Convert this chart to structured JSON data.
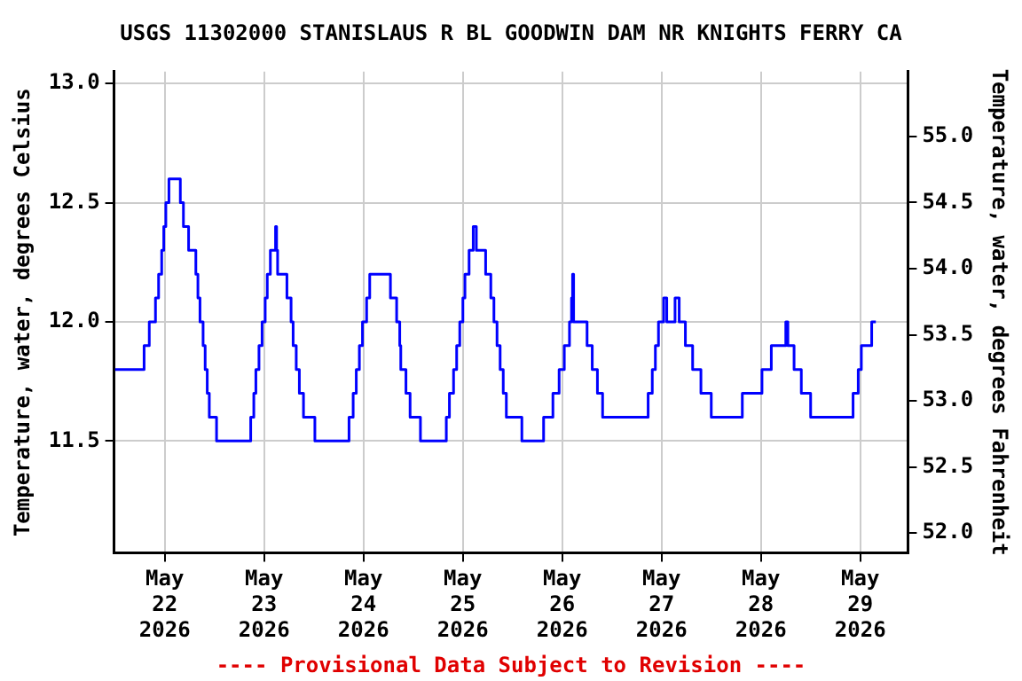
{
  "chart_data": {
    "type": "step",
    "title": "USGS 11302000 STANISLAUS R BL GOODWIN DAM NR KNIGHTS FERRY CA",
    "ylabel": "Temperature, water, degrees Celsius",
    "y2label": "Temperature, water, degrees Fahrenheit",
    "annotations": [
      "---- Provisional Data Subject to Revision ----"
    ],
    "xlim": [
      "2026-05-21T11:45",
      "2026-05-29T11:30"
    ],
    "xticks": [
      {
        "value": "2026-05-22",
        "label": "May\n22\n2026"
      },
      {
        "value": "2026-05-23",
        "label": "May\n23\n2026"
      },
      {
        "value": "2026-05-24",
        "label": "May\n24\n2026"
      },
      {
        "value": "2026-05-25",
        "label": "May\n25\n2026"
      },
      {
        "value": "2026-05-26",
        "label": "May\n26\n2026"
      },
      {
        "value": "2026-05-27",
        "label": "May\n27\n2026"
      },
      {
        "value": "2026-05-28",
        "label": "May\n28\n2026"
      },
      {
        "value": "2026-05-29",
        "label": "May\n29\n2026"
      }
    ],
    "ylim": [
      11.03,
      13.05
    ],
    "yticks": [
      {
        "value": 11.5,
        "label": "11.5"
      },
      {
        "value": 12,
        "label": "12.0"
      },
      {
        "value": 12.5,
        "label": "12.5"
      },
      {
        "value": 13,
        "label": "13.0"
      }
    ],
    "y2lim": [
      51.85,
      55.49
    ],
    "y2ticks": [
      {
        "value": 52,
        "label": "52.0"
      },
      {
        "value": 52.5,
        "label": "52.5"
      },
      {
        "value": 53,
        "label": "53.0"
      },
      {
        "value": 53.5,
        "label": "53.5"
      },
      {
        "value": 54,
        "label": "54.0"
      },
      {
        "value": 54.5,
        "label": "54.5"
      },
      {
        "value": 55,
        "label": "55.0"
      }
    ],
    "grid": true,
    "legend": false,
    "marker": "none",
    "line_style": "solid",
    "x": [
      "2026-05-21T12:00",
      "2026-05-21T19:00",
      "2026-05-21T20:15",
      "2026-05-21T21:45",
      "2026-05-21T22:30",
      "2026-05-21T23:15",
      "2026-05-21T23:45",
      "2026-05-22T00:15",
      "2026-05-22T01:00",
      "2026-05-22T03:45",
      "2026-05-22T04:30",
      "2026-05-22T05:45",
      "2026-05-22T07:30",
      "2026-05-22T08:00",
      "2026-05-22T08:30",
      "2026-05-22T09:15",
      "2026-05-22T09:45",
      "2026-05-22T10:15",
      "2026-05-22T10:45",
      "2026-05-22T12:30",
      "2026-05-22T20:45",
      "2026-05-22T21:30",
      "2026-05-22T22:00",
      "2026-05-22T22:45",
      "2026-05-22T23:30",
      "2026-05-23T00:15",
      "2026-05-23T00:45",
      "2026-05-23T01:30",
      "2026-05-23T02:45",
      "2026-05-23T03:00",
      "2026-05-23T03:15",
      "2026-05-23T05:30",
      "2026-05-23T06:30",
      "2026-05-23T07:00",
      "2026-05-23T07:45",
      "2026-05-23T08:30",
      "2026-05-23T09:30",
      "2026-05-23T12:15",
      "2026-05-23T20:30",
      "2026-05-23T21:30",
      "2026-05-23T22:15",
      "2026-05-23T23:00",
      "2026-05-23T23:45",
      "2026-05-24T00:45",
      "2026-05-24T01:30",
      "2026-05-24T06:30",
      "2026-05-24T08:00",
      "2026-05-24T08:45",
      "2026-05-24T09:00",
      "2026-05-24T10:15",
      "2026-05-24T11:15",
      "2026-05-24T13:45",
      "2026-05-24T20:00",
      "2026-05-24T20:45",
      "2026-05-24T21:45",
      "2026-05-24T22:30",
      "2026-05-24T23:15",
      "2026-05-25T00:00",
      "2026-05-25T00:30",
      "2026-05-25T01:30",
      "2026-05-25T02:30",
      "2026-05-25T03:15",
      "2026-05-25T05:30",
      "2026-05-25T06:45",
      "2026-05-25T07:30",
      "2026-05-25T08:15",
      "2026-05-25T09:00",
      "2026-05-25T09:45",
      "2026-05-25T10:30",
      "2026-05-25T14:15",
      "2026-05-25T19:30",
      "2026-05-25T21:45",
      "2026-05-25T23:15",
      "2026-05-26T00:30",
      "2026-05-26T01:45",
      "2026-05-26T02:15",
      "2026-05-26T02:30",
      "2026-05-26T02:45",
      "2026-05-26T06:00",
      "2026-05-26T07:15",
      "2026-05-26T08:30",
      "2026-05-26T09:45",
      "2026-05-26T20:45",
      "2026-05-26T21:45",
      "2026-05-26T22:30",
      "2026-05-26T23:15",
      "2026-05-27T00:30",
      "2026-05-27T01:15",
      "2026-05-27T03:15",
      "2026-05-27T04:15",
      "2026-05-27T05:45",
      "2026-05-27T07:30",
      "2026-05-27T09:30",
      "2026-05-27T12:00",
      "2026-05-27T19:30",
      "2026-05-28T00:15",
      "2026-05-28T02:30",
      "2026-05-28T06:00",
      "2026-05-28T06:30",
      "2026-05-28T08:00",
      "2026-05-28T09:45",
      "2026-05-28T12:00",
      "2026-05-28T22:15",
      "2026-05-28T23:30",
      "2026-05-29T00:15",
      "2026-05-29T02:45",
      "2026-05-29T03:45"
    ],
    "series": [
      {
        "color": "#0000ff",
        "values": [
          11.8,
          11.9,
          12.0,
          12.1,
          12.2,
          12.3,
          12.4,
          12.5,
          12.6,
          12.5,
          12.4,
          12.3,
          12.2,
          12.1,
          12.0,
          11.9,
          11.8,
          11.7,
          11.6,
          11.5,
          11.6,
          11.7,
          11.8,
          11.9,
          12.0,
          12.1,
          12.2,
          12.3,
          12.4,
          12.3,
          12.2,
          12.1,
          12.0,
          11.9,
          11.8,
          11.7,
          11.6,
          11.5,
          11.6,
          11.7,
          11.8,
          11.9,
          12.0,
          12.1,
          12.2,
          12.1,
          12.0,
          11.9,
          11.8,
          11.7,
          11.6,
          11.5,
          11.6,
          11.7,
          11.8,
          11.9,
          12.0,
          12.1,
          12.2,
          12.3,
          12.4,
          12.3,
          12.2,
          12.1,
          12.0,
          11.9,
          11.8,
          11.7,
          11.6,
          11.5,
          11.6,
          11.7,
          11.8,
          11.9,
          12.0,
          12.1,
          12.2,
          12.0,
          11.9,
          11.8,
          11.7,
          11.6,
          11.7,
          11.8,
          11.9,
          12.0,
          12.1,
          12.0,
          12.1,
          12.0,
          11.9,
          11.8,
          11.7,
          11.6,
          11.7,
          11.8,
          11.9,
          12.0,
          11.9,
          11.8,
          11.7,
          11.6,
          11.7,
          11.8,
          11.9,
          12.0,
          12.0
        ]
      }
    ]
  }
}
